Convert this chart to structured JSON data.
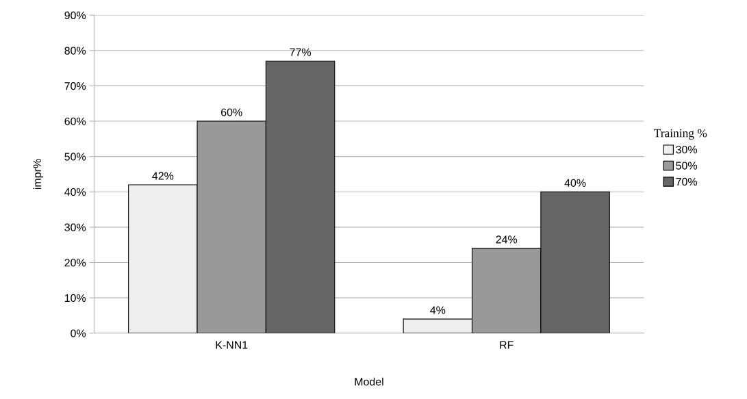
{
  "chart_data": {
    "type": "bar",
    "xlabel": "Model",
    "ylabel": "impr%",
    "legend_title": "Training %",
    "categories": [
      "K-NN1",
      "RF"
    ],
    "series": [
      {
        "name": "30%",
        "color": "#eeeeee",
        "values": [
          42,
          4
        ]
      },
      {
        "name": "50%",
        "color": "#999999",
        "values": [
          60,
          24
        ]
      },
      {
        "name": "70%",
        "color": "#666666",
        "values": [
          77,
          40
        ]
      }
    ],
    "ylim": [
      0,
      90
    ],
    "yticks": [
      {
        "value": 0,
        "label": "0%"
      },
      {
        "value": 10,
        "label": "10%"
      },
      {
        "value": 20,
        "label": "20%"
      },
      {
        "value": 30,
        "label": "30%"
      },
      {
        "value": 40,
        "label": "40%"
      },
      {
        "value": 50,
        "label": "50%"
      },
      {
        "value": 60,
        "label": "60%"
      },
      {
        "value": 70,
        "label": "70%"
      },
      {
        "value": 80,
        "label": "80%"
      },
      {
        "value": 90,
        "label": "90%"
      }
    ],
    "value_labels": [
      [
        "42%",
        "4%"
      ],
      [
        "60%",
        "24%"
      ],
      [
        "77%",
        "40%"
      ]
    ],
    "grid": "y",
    "legend": "right"
  }
}
